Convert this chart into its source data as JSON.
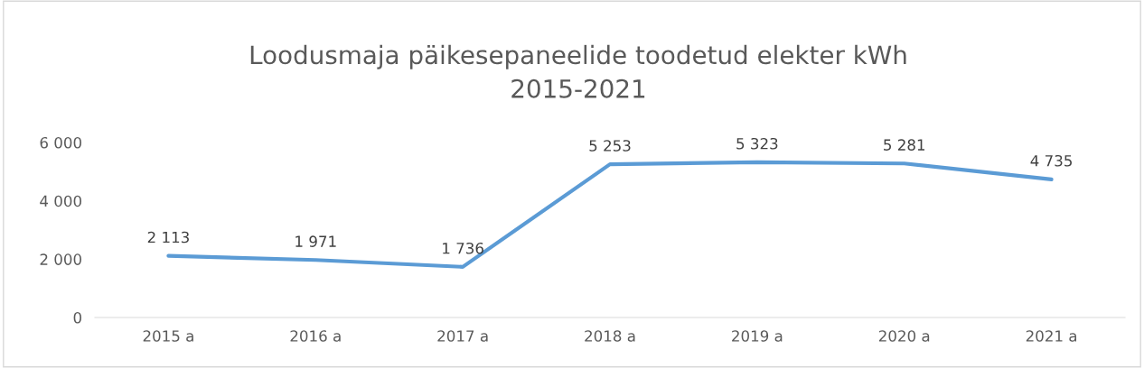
{
  "chart_data": {
    "type": "line",
    "title": "Loodusmaja päikesepaneelide toodetud elekter kWh\n2015-2021",
    "categories": [
      "2015 a",
      "2016 a",
      "2017 a",
      "2018 a",
      "2019 a",
      "2020 a",
      "2021 a"
    ],
    "series": [
      {
        "color": "#5b9bd5",
        "values": [
          2113,
          1971,
          1736,
          5253,
          5323,
          5281,
          4735
        ],
        "value_labels": [
          "2 113",
          "1 971",
          "1 736",
          "5 253",
          "5 323",
          "5 281",
          "4 735"
        ]
      }
    ],
    "ylim": [
      0,
      6000
    ],
    "yticks": [
      {
        "value": 0,
        "label": "0"
      },
      {
        "value": 2000,
        "label": "2 000"
      },
      {
        "value": 4000,
        "label": "4 000"
      },
      {
        "value": 6000,
        "label": "6 000"
      }
    ],
    "grid": false,
    "legend": false,
    "marker": "none",
    "line_style": "solid"
  }
}
